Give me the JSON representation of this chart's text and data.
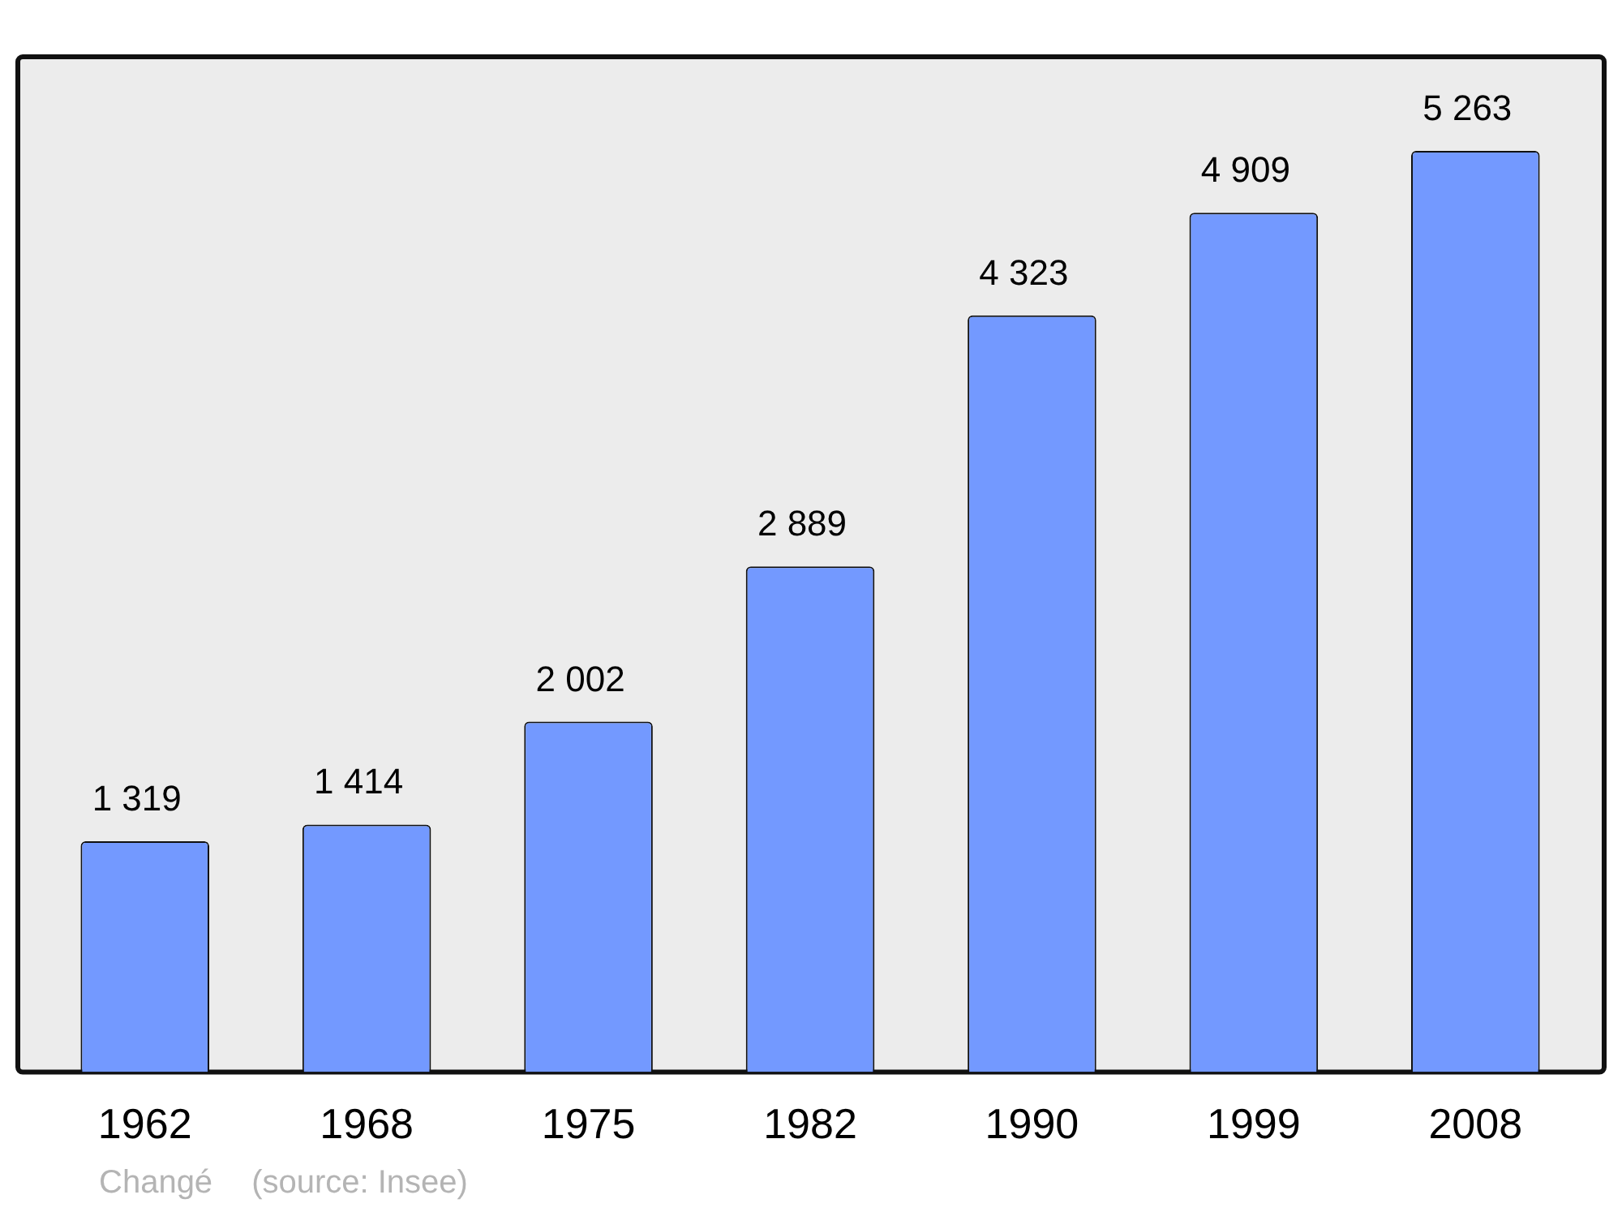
{
  "chart_data": {
    "type": "bar",
    "categories": [
      "1962",
      "1968",
      "1975",
      "1982",
      "1990",
      "1999",
      "2008"
    ],
    "values": [
      1319,
      1414,
      2002,
      2889,
      4323,
      4909,
      5263
    ],
    "value_labels": [
      "1 319",
      "1 414",
      "2 002",
      "2 889",
      "4 323",
      "4 909",
      "5 263"
    ],
    "color": "#7399ff",
    "ylim": [
      0,
      5800
    ],
    "tick_labels": "x",
    "grid": false,
    "legend": false,
    "annotations": [
      "Changé",
      "(source: Insee)"
    ]
  }
}
